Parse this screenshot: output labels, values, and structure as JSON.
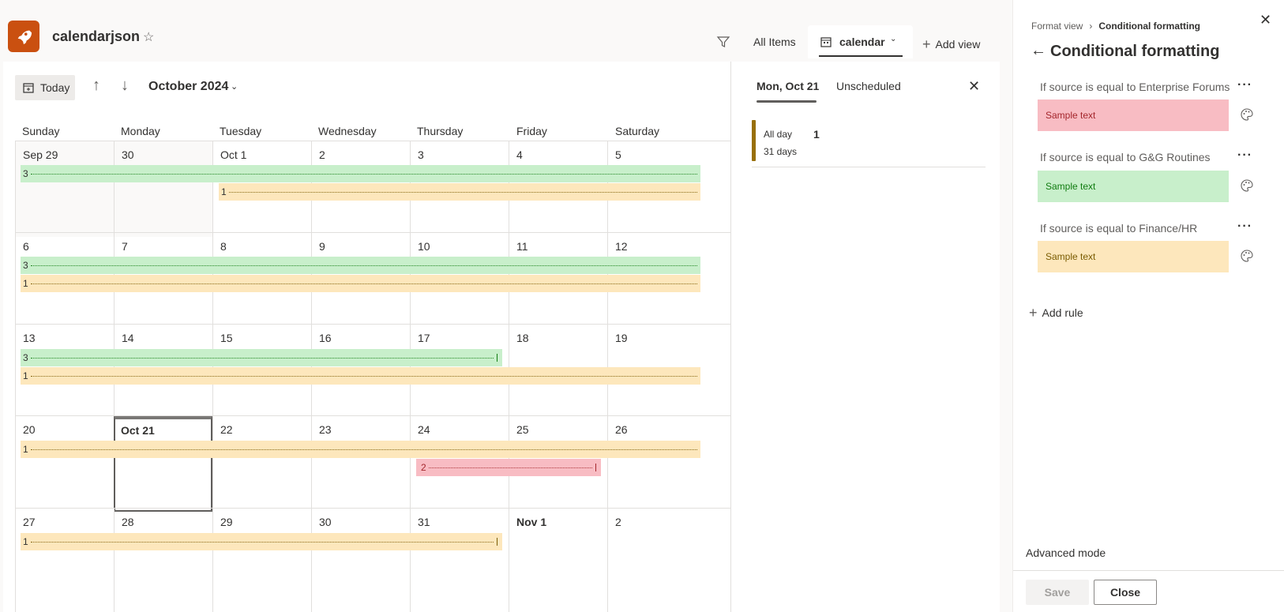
{
  "header": {
    "site_title": "calendarjson",
    "views": {
      "all_items": "All Items",
      "calendar": "calendar",
      "add_view": "Add view"
    }
  },
  "toolbar": {
    "today": "Today",
    "month": "October 2024"
  },
  "weekdays": [
    "Sunday",
    "Monday",
    "Tuesday",
    "Wednesday",
    "Thursday",
    "Friday",
    "Saturday"
  ],
  "weeks": [
    {
      "days": [
        "Sep 29",
        "30",
        "Oct 1",
        "2",
        "3",
        "4",
        "5"
      ]
    },
    {
      "days": [
        "6",
        "7",
        "8",
        "9",
        "10",
        "11",
        "12"
      ]
    },
    {
      "days": [
        "13",
        "14",
        "15",
        "16",
        "17",
        "18",
        "19"
      ]
    },
    {
      "days": [
        "20",
        "Oct 21",
        "22",
        "23",
        "24",
        "25",
        "26"
      ]
    },
    {
      "days": [
        "27",
        "28",
        "29",
        "30",
        "31",
        "Nov 1",
        "2"
      ]
    }
  ],
  "events": {
    "w1_green": "3",
    "w1_orange": "1",
    "w2_green": "3",
    "w2_orange": "1",
    "w3_green": "3",
    "w3_orange": "1",
    "w4_orange": "1",
    "w4_red": "2",
    "w5_orange": "1"
  },
  "day_pane": {
    "tab_day": "Mon, Oct 21",
    "tab_unscheduled": "Unscheduled",
    "event": {
      "allday": "All day",
      "duration": "31 days",
      "title": "1"
    }
  },
  "panel": {
    "breadcrumb_parent": "Format view",
    "breadcrumb_current": "Conditional formatting",
    "title": "Conditional formatting",
    "rules": [
      {
        "label": "If source is equal to Enterprise Forums",
        "sample": "Sample text",
        "bg": "#f8bcc3",
        "fg": "#a4262c"
      },
      {
        "label": "If source is equal to G&G Routines",
        "sample": "Sample text",
        "bg": "#c8efcb",
        "fg": "#107c10"
      },
      {
        "label": "If source is equal to Finance/HR",
        "sample": "Sample text",
        "bg": "#fde7bc",
        "fg": "#7a5b00"
      }
    ],
    "add_rule": "Add rule",
    "advanced_mode": "Advanced mode",
    "save": "Save",
    "close": "Close"
  }
}
